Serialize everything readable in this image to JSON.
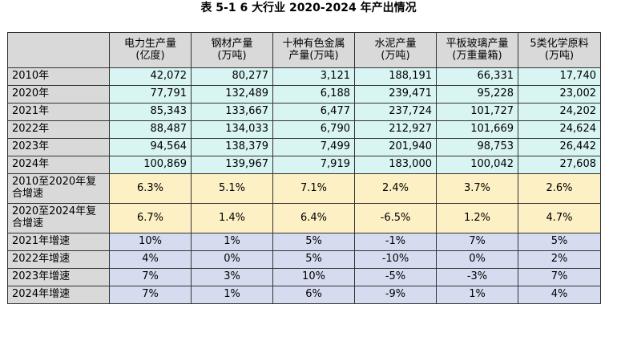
{
  "caption": "表 5-1   6 大行业 2020-2024 年产出情况",
  "colors": {
    "header_bg": "#d9d9d9",
    "production_bg": "#d8f4f3",
    "cagr_bg": "#fdf0c4",
    "growth_bg": "#d6dcf0",
    "border": "#333333"
  },
  "header": {
    "corner": "",
    "columns": [
      {
        "line1": "电力生产量",
        "line2": "(亿度)"
      },
      {
        "line1": "钢材产量",
        "line2": "(万吨)"
      },
      {
        "line1": "十种有色金属",
        "line2": "产量(万吨)"
      },
      {
        "line1": "水泥产量",
        "line2": "(万吨)"
      },
      {
        "line1": "平板玻璃产量",
        "line2": "(万重量箱)"
      },
      {
        "line1": "5类化学原料",
        "line2": "(万吨)"
      }
    ]
  },
  "production_rows": [
    {
      "label": "2010年",
      "values": [
        "42,072",
        "80,277",
        "3,121",
        "188,191",
        "66,331",
        "17,740"
      ]
    },
    {
      "label": "2020年",
      "values": [
        "77,791",
        "132,489",
        "6,188",
        "239,471",
        "95,228",
        "23,002"
      ]
    },
    {
      "label": "2021年",
      "values": [
        "85,343",
        "133,667",
        "6,477",
        "237,724",
        "101,727",
        "24,202"
      ]
    },
    {
      "label": "2022年",
      "values": [
        "88,487",
        "134,033",
        "6,790",
        "212,927",
        "101,669",
        "24,624"
      ]
    },
    {
      "label": "2023年",
      "values": [
        "94,564",
        "138,379",
        "7,499",
        "201,940",
        "98,753",
        "26,442"
      ]
    },
    {
      "label": "2024年",
      "values": [
        "100,869",
        "139,967",
        "7,919",
        "183,000",
        "100,042",
        "27,608"
      ]
    }
  ],
  "cagr_rows": [
    {
      "label": "2010至2020年复合增速",
      "values": [
        "6.3%",
        "5.1%",
        "7.1%",
        "2.4%",
        "3.7%",
        "2.6%"
      ]
    },
    {
      "label": "2020至2024年复合增速",
      "values": [
        "6.7%",
        "1.4%",
        "6.4%",
        "-6.5%",
        "1.2%",
        "4.7%"
      ]
    }
  ],
  "growth_rows": [
    {
      "label": "2021年增速",
      "values": [
        "10%",
        "1%",
        "5%",
        "-1%",
        "7%",
        "5%"
      ]
    },
    {
      "label": "2022年增速",
      "values": [
        "4%",
        "0%",
        "5%",
        "-10%",
        "0%",
        "2%"
      ]
    },
    {
      "label": "2023年增速",
      "values": [
        "7%",
        "3%",
        "10%",
        "-5%",
        "-3%",
        "7%"
      ]
    },
    {
      "label": "2024年增速",
      "values": [
        "7%",
        "1%",
        "6%",
        "-9%",
        "1%",
        "4%"
      ]
    }
  ]
}
